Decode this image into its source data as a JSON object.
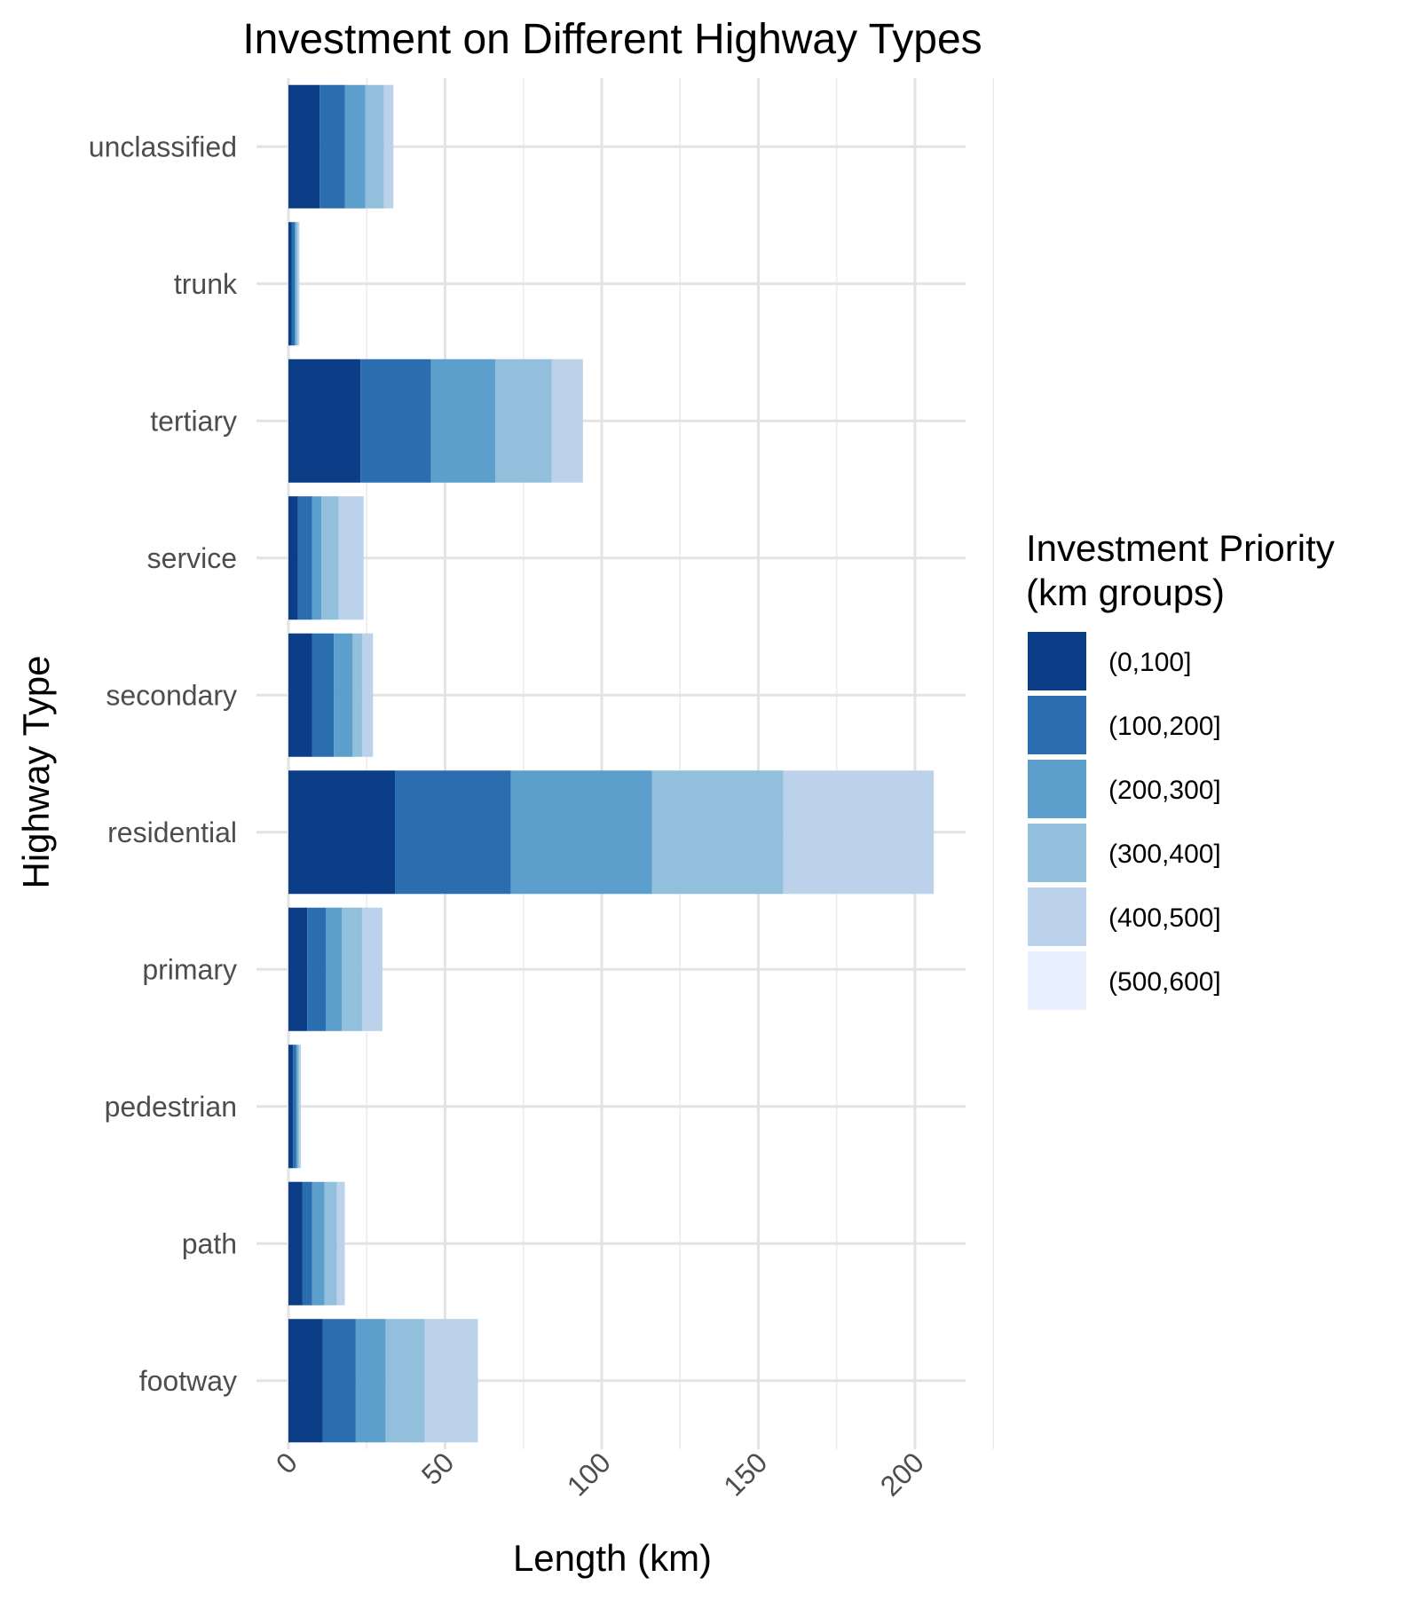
{
  "chart_data": {
    "type": "bar",
    "orientation": "horizontal",
    "stacked": true,
    "title": "Investment on Different Highway Types",
    "xlabel": "Length (km)",
    "ylabel": "Highway Type",
    "xlim": [
      0,
      215
    ],
    "x_ticks": [
      0,
      50,
      100,
      150,
      200
    ],
    "x_tick_labels": [
      "0",
      "50",
      "100",
      "150",
      "200"
    ],
    "grid": true,
    "legend_position": "right",
    "legend_title_lines": [
      "Investment Priority",
      "(km groups)"
    ],
    "categories": [
      "footway",
      "path",
      "pedestrian",
      "primary",
      "residential",
      "secondary",
      "service",
      "tertiary",
      "trunk",
      "unclassified"
    ],
    "series": [
      {
        "name": "(0,100]",
        "color": "#0c3d87",
        "values": [
          11,
          4.5,
          1.5,
          6,
          34,
          7.5,
          3,
          23,
          1,
          10
        ]
      },
      {
        "name": "(100,200]",
        "color": "#2a6eb0",
        "values": [
          10.5,
          3,
          1,
          6,
          37,
          7,
          4.5,
          22.5,
          1,
          8
        ]
      },
      {
        "name": "(200,300]",
        "color": "#5c9fcc",
        "values": [
          9.5,
          4,
          0.5,
          5,
          45,
          6,
          3,
          20.5,
          0.5,
          6.5
        ]
      },
      {
        "name": "(300,400]",
        "color": "#91bfdc",
        "values": [
          12.5,
          4,
          0.5,
          6.5,
          42,
          3,
          5.5,
          18,
          0.5,
          6
        ]
      },
      {
        "name": "(400,500]",
        "color": "#bcd2ea",
        "values": [
          17,
          2.5,
          0.5,
          6.5,
          48,
          3.5,
          8,
          10,
          0.5,
          3
        ]
      },
      {
        "name": "(500,600]",
        "color": "#e9f0fd",
        "values": [
          0,
          0,
          0,
          0,
          0,
          0,
          0,
          0,
          0,
          0
        ]
      }
    ]
  }
}
